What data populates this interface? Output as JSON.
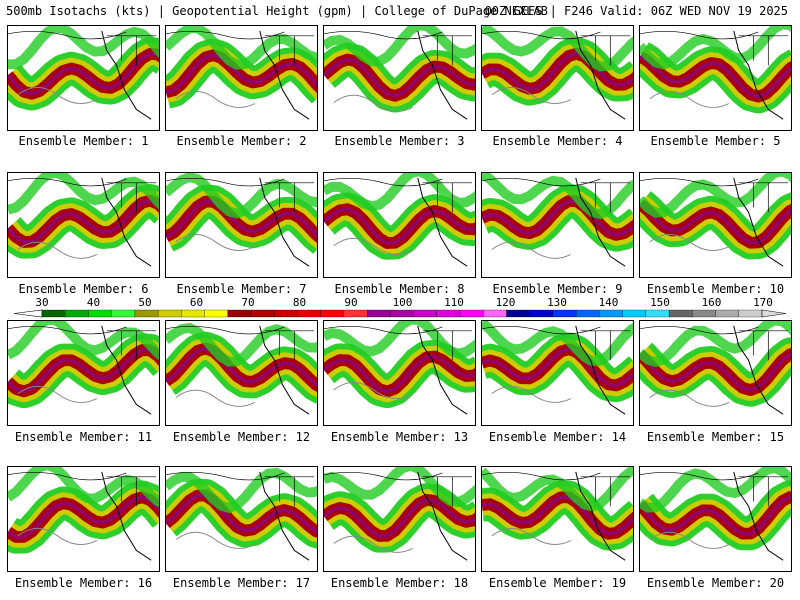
{
  "header": {
    "left_text": "500mb Isotachs (kts) | Geopotential Height (gpm) | College of DuPage NEXLAB",
    "right_text": "00Z GEFS | F246 Valid: 06Z WED NOV 19 2025"
  },
  "members": [
    {
      "label": "Ensemble Member: 1"
    },
    {
      "label": "Ensemble Member: 2"
    },
    {
      "label": "Ensemble Member: 3"
    },
    {
      "label": "Ensemble Member: 4"
    },
    {
      "label": "Ensemble Member: 5"
    },
    {
      "label": "Ensemble Member: 6"
    },
    {
      "label": "Ensemble Member: 7"
    },
    {
      "label": "Ensemble Member: 8"
    },
    {
      "label": "Ensemble Member: 9"
    },
    {
      "label": "Ensemble Member: 10"
    },
    {
      "label": "Ensemble Member: 11"
    },
    {
      "label": "Ensemble Member: 12"
    },
    {
      "label": "Ensemble Member: 13"
    },
    {
      "label": "Ensemble Member: 14"
    },
    {
      "label": "Ensemble Member: 15"
    },
    {
      "label": "Ensemble Member: 16"
    },
    {
      "label": "Ensemble Member: 17"
    },
    {
      "label": "Ensemble Member: 18"
    },
    {
      "label": "Ensemble Member: 19"
    },
    {
      "label": "Ensemble Member: 20"
    }
  ],
  "colorbar": {
    "labels": [
      "30",
      "40",
      "50",
      "60",
      "70",
      "80",
      "90",
      "100",
      "110",
      "120",
      "130",
      "140",
      "150",
      "160",
      "170"
    ],
    "colors": [
      "#006600",
      "#00aa00",
      "#00dd00",
      "#33ff33",
      "#999900",
      "#cccc00",
      "#e6e600",
      "#ffff00",
      "#990000",
      "#b30000",
      "#cc0000",
      "#e60000",
      "#ff0000",
      "#ff3333",
      "#990099",
      "#aa00aa",
      "#cc00cc",
      "#dd00dd",
      "#ff00ff",
      "#ff66ff",
      "#000099",
      "#0000cc",
      "#0033ff",
      "#0066ff",
      "#0099ff",
      "#00ccff",
      "#33ddff",
      "#666666",
      "#888888",
      "#aaaaaa",
      "#cccccc"
    ]
  }
}
